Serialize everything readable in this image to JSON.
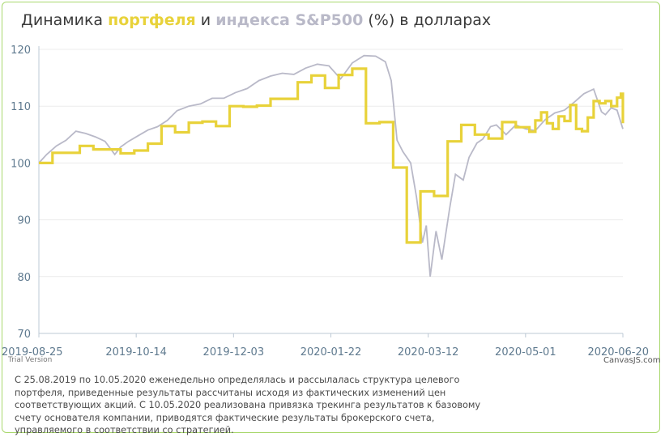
{
  "title": {
    "part1": "Динамика ",
    "portfolio_word": "портфеля",
    "part2": " и ",
    "index_word": "индекса S&P500",
    "part3": " (%) в долларах"
  },
  "colors": {
    "portfolio": "#e8d23a",
    "index": "#b9b9c8",
    "border": "#a9d86e"
  },
  "watermark": {
    "trial": "Trial Version",
    "credit": "CanvasJS.com"
  },
  "footnote": "С 25.08.2019 по 10.05.2020 еженедельно определялась и рассылалась структура целевого портфеля, приведенные результаты рассчитаны исходя из фактических изменений цен соответствующих акций. С 10.05.2020 реализована привязка трекинга результатов к базовому счету основателя компании, приводятся фактические результаты брокерского счета, управляемого в соответствии со стратегией.",
  "chart_data": {
    "type": "line",
    "ylim": [
      70,
      120
    ],
    "yticks": [
      70,
      80,
      90,
      100,
      110,
      120
    ],
    "xlim": [
      "2019-08-25",
      "2020-06-20"
    ],
    "xticks": [
      "2019-08-25",
      "2019-10-14",
      "2019-12-03",
      "2020-01-22",
      "2020-03-12",
      "2020-05-01",
      "2020-06-20"
    ],
    "grid": true,
    "series": [
      {
        "key": "portfolio",
        "step": true,
        "x": [
          "2019-08-25",
          "2019-09-01",
          "2019-09-15",
          "2019-09-22",
          "2019-10-06",
          "2019-10-13",
          "2019-10-20",
          "2019-10-27",
          "2019-11-03",
          "2019-11-10",
          "2019-11-17",
          "2019-11-24",
          "2019-12-01",
          "2019-12-08",
          "2019-12-15",
          "2019-12-22",
          "2020-01-05",
          "2020-01-12",
          "2020-01-19",
          "2020-01-26",
          "2020-02-02",
          "2020-02-09",
          "2020-02-16",
          "2020-02-23",
          "2020-03-01",
          "2020-03-08",
          "2020-03-15",
          "2020-03-22",
          "2020-03-29",
          "2020-04-05",
          "2020-04-12",
          "2020-04-19",
          "2020-04-26",
          "2020-05-03",
          "2020-05-06",
          "2020-05-09",
          "2020-05-12",
          "2020-05-15",
          "2020-05-18",
          "2020-05-21",
          "2020-05-24",
          "2020-05-27",
          "2020-05-30",
          "2020-06-02",
          "2020-06-05",
          "2020-06-08",
          "2020-06-11",
          "2020-06-14",
          "2020-06-17",
          "2020-06-19",
          "2020-06-20"
        ],
        "y": [
          100,
          101.8,
          103,
          102.4,
          101.7,
          102.2,
          103.4,
          106.5,
          105.4,
          107.1,
          107.3,
          106.5,
          110,
          109.9,
          110.1,
          111.3,
          114.2,
          115.4,
          113.2,
          115.5,
          116.6,
          107,
          107.2,
          99.2,
          86,
          95,
          94.2,
          103.8,
          106.7,
          105,
          104.3,
          107.2,
          106.3,
          105.5,
          107.5,
          108.9,
          107,
          106,
          108.2,
          107.4,
          110.2,
          106,
          105.6,
          108,
          110.9,
          110.5,
          110.9,
          110,
          111.5,
          112.2,
          107
        ]
      },
      {
        "key": "index",
        "step": false,
        "x": [
          "2019-08-25",
          "2019-08-29",
          "2019-09-03",
          "2019-09-08",
          "2019-09-13",
          "2019-09-18",
          "2019-09-23",
          "2019-09-28",
          "2019-10-03",
          "2019-10-06",
          "2019-10-10",
          "2019-10-15",
          "2019-10-20",
          "2019-10-25",
          "2019-10-30",
          "2019-11-04",
          "2019-11-10",
          "2019-11-16",
          "2019-11-22",
          "2019-11-28",
          "2019-12-04",
          "2019-12-10",
          "2019-12-16",
          "2019-12-22",
          "2019-12-28",
          "2020-01-03",
          "2020-01-09",
          "2020-01-15",
          "2020-01-21",
          "2020-01-27",
          "2020-02-02",
          "2020-02-08",
          "2020-02-14",
          "2020-02-19",
          "2020-02-22",
          "2020-02-25",
          "2020-02-28",
          "2020-03-03",
          "2020-03-06",
          "2020-03-09",
          "2020-03-11",
          "2020-03-13",
          "2020-03-16",
          "2020-03-19",
          "2020-03-23",
          "2020-03-26",
          "2020-03-30",
          "2020-04-02",
          "2020-04-06",
          "2020-04-09",
          "2020-04-13",
          "2020-04-16",
          "2020-04-21",
          "2020-04-26",
          "2020-05-01",
          "2020-05-06",
          "2020-05-11",
          "2020-05-16",
          "2020-05-21",
          "2020-05-26",
          "2020-05-31",
          "2020-06-05",
          "2020-06-09",
          "2020-06-11",
          "2020-06-14",
          "2020-06-17",
          "2020-06-20"
        ],
        "y": [
          100,
          101.5,
          103,
          104,
          105.6,
          105.2,
          104.6,
          103.8,
          101.5,
          102.8,
          103.8,
          104.8,
          105.8,
          106.4,
          107.5,
          109.2,
          110,
          110.4,
          111.4,
          111.4,
          112.4,
          113.1,
          114.5,
          115.3,
          115.8,
          115.6,
          116.7,
          117.4,
          117.1,
          114.8,
          117.6,
          118.9,
          118.8,
          117.8,
          114.5,
          104,
          102,
          100,
          94,
          86,
          89,
          80,
          88,
          83,
          92,
          98,
          97,
          101,
          103.5,
          104.2,
          106.4,
          106.7,
          105,
          106.7,
          106,
          105.7,
          107.6,
          108.8,
          109.3,
          110.7,
          112.2,
          113,
          109,
          108.5,
          109.7,
          109.3,
          106
        ]
      }
    ]
  }
}
